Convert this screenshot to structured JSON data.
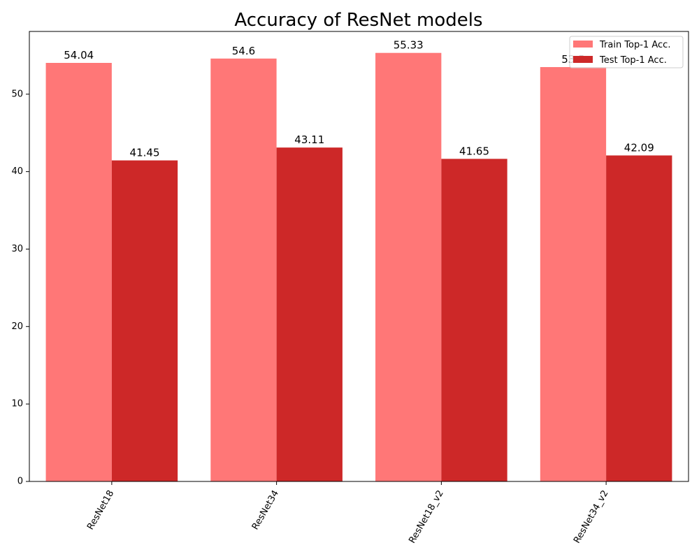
{
  "chart_data": {
    "type": "bar",
    "title": "Accuracy of ResNet models",
    "xlabel": "",
    "ylabel": "",
    "categories": [
      "ResNet18",
      "ResNet34",
      "ResNet18_v2",
      "ResNet34_v2"
    ],
    "series": [
      {
        "name": "Train Top-1 Acc.",
        "color": "#ff7777",
        "values": [
          54.04,
          54.6,
          55.33,
          53.5
        ],
        "labels": [
          "54.04",
          "54.6",
          "55.33",
          "53.5"
        ]
      },
      {
        "name": "Test Top-1 Acc.",
        "color": "#cd2828",
        "values": [
          41.45,
          43.11,
          41.65,
          42.09
        ],
        "labels": [
          "41.45",
          "43.11",
          "41.65",
          "42.09"
        ]
      }
    ],
    "ylim": [
      0,
      58.1
    ],
    "yticks": [
      0,
      10,
      20,
      30,
      40,
      50
    ],
    "ytick_labels": [
      "0",
      "10",
      "20",
      "30",
      "40",
      "50"
    ],
    "grid": false,
    "legend_position": "top-right",
    "xtick_rotation_deg": 60
  }
}
